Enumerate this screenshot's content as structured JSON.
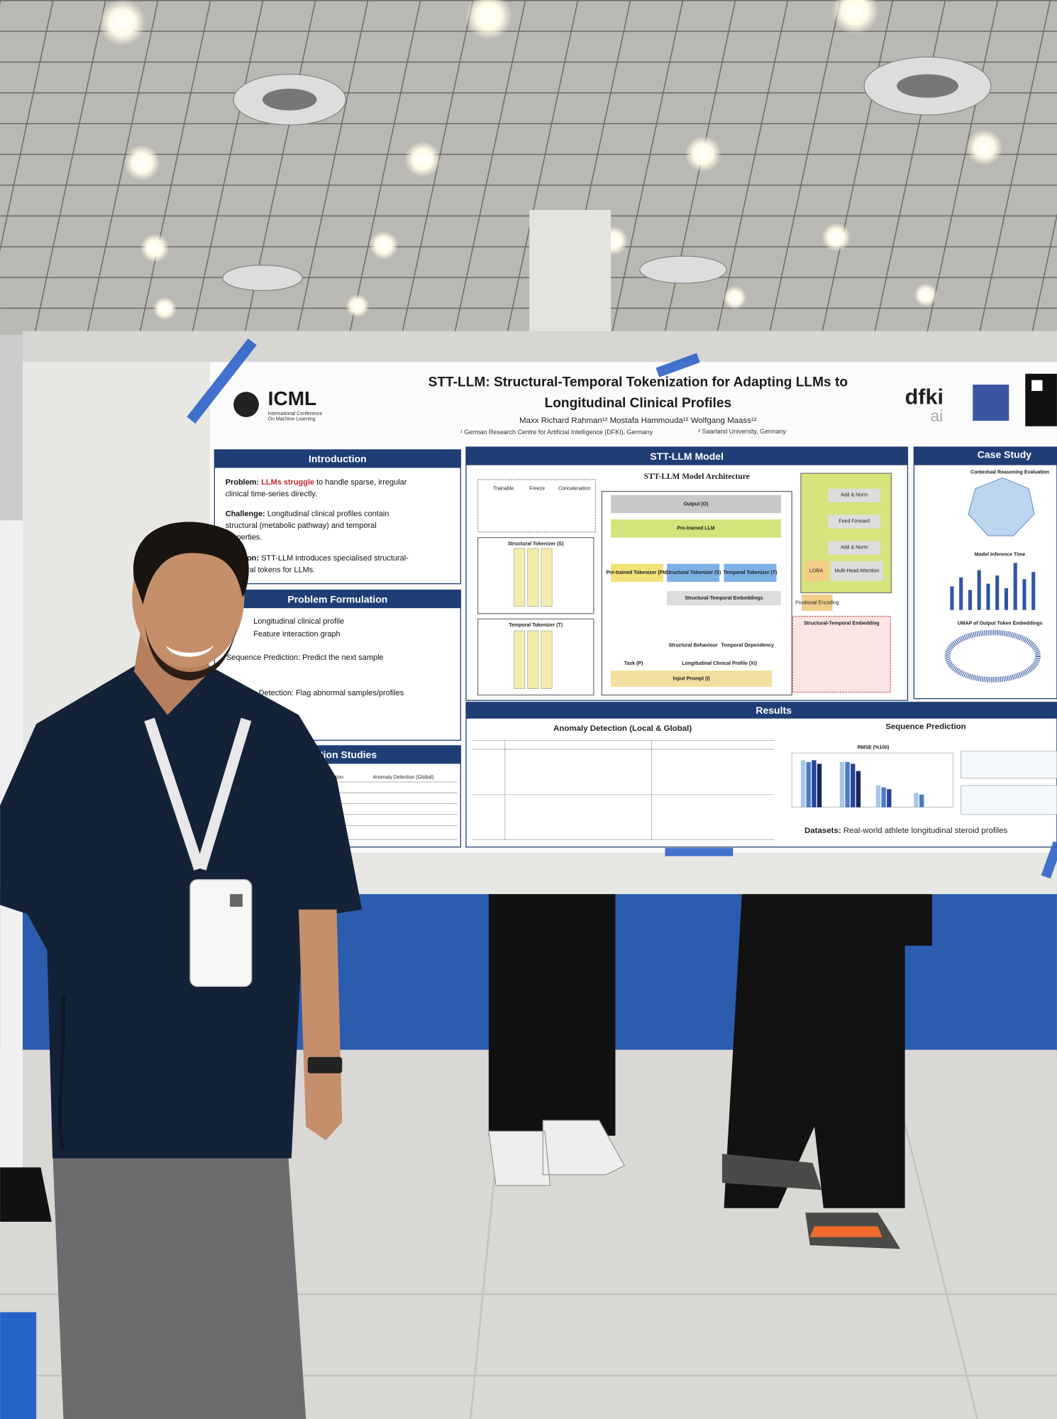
{
  "poster": {
    "title_lines": [
      "STT-LLM: Structural-Temporal Tokenization for Adapting LLMs to",
      "Longitudinal Clinical Profiles"
    ],
    "authors": "Maxx Richard Rahman¹² Mostafa Hammouda¹² Wolfgang Maass¹²",
    "affiliations": [
      "¹ German Research Centre for Artificial Intelligence (DFKI), Germany",
      "² Saarland University, Germany"
    ],
    "logos": {
      "icml": "ICML",
      "icml_sub": [
        "International Conference",
        "On Machine Learning"
      ],
      "dfki": "dfki",
      "dfki_sub": "ai"
    },
    "introduction": {
      "heading": "Introduction",
      "paragraphs": [
        {
          "label": "Problem:",
          "highlight": "LLMs struggle",
          "text": [
            " to handle sparse, irregular",
            "clinical time-series directly."
          ]
        },
        {
          "label": "Challenge:",
          "text": [
            " Longitudinal clinical profiles contain",
            "structural (metabolic pathway) and temporal",
            "properties."
          ]
        },
        {
          "label": "Solution:",
          "text": [
            " STT-LLM introduces specialised structural-",
            "temporal tokens for LLMs."
          ]
        }
      ]
    },
    "problem_formulation": {
      "heading": "Problem Formulation",
      "items": [
        "Longitudinal clinical profile",
        "Feature interaction graph",
        "Sequence Prediction: Predict the next sample",
        "Anomaly Detection: Flag abnormal samples/profiles"
      ]
    },
    "ablation": {
      "heading": "Ablation Studies",
      "columns": [
        "Prediction",
        "Anomaly Detection (Global)"
      ]
    },
    "model": {
      "heading": "STT-LLM Model",
      "subtitle": "STT-LLM Model Architecture",
      "blocks": [
        "Output (O)",
        "Pre-trained LLM",
        "Pre-trained Tokenizer (Ptr)",
        "Structural Tokenizer (S)",
        "Temporal Tokenizer (T)",
        "Structural-Temporal Embeddings",
        "Structural Behaviour",
        "Temporal Dependency",
        "Longitudinal Clinical Profile (Xi)",
        "Task (P)",
        "Input Prompt (I)"
      ],
      "side": [
        "Add & Norm",
        "Feed Forward",
        "Add & Norm",
        "LORA",
        "Multi-Head Attention",
        "Positional Encoding",
        "Structural-Temporal Embedding"
      ],
      "tokenizers": [
        "Structural Tokenizer (S)",
        "Temporal Tokenizer (T)"
      ],
      "legend": [
        "Trainable",
        "Freeze",
        "Concatenation"
      ]
    },
    "case_study": {
      "heading": "Case Study",
      "panels": [
        "Contextual Reasoning Evaluation",
        "Model Inference Time",
        "UMAP of Output Token Embeddings"
      ]
    },
    "results": {
      "heading": "Results",
      "left": "Anomaly Detection (Local & Global)",
      "right": "Sequence Prediction",
      "chart_title": "RMSE (%100)",
      "datasets_label": "Datasets:",
      "datasets_text": " Real-world athlete longitudinal steroid profiles"
    }
  }
}
